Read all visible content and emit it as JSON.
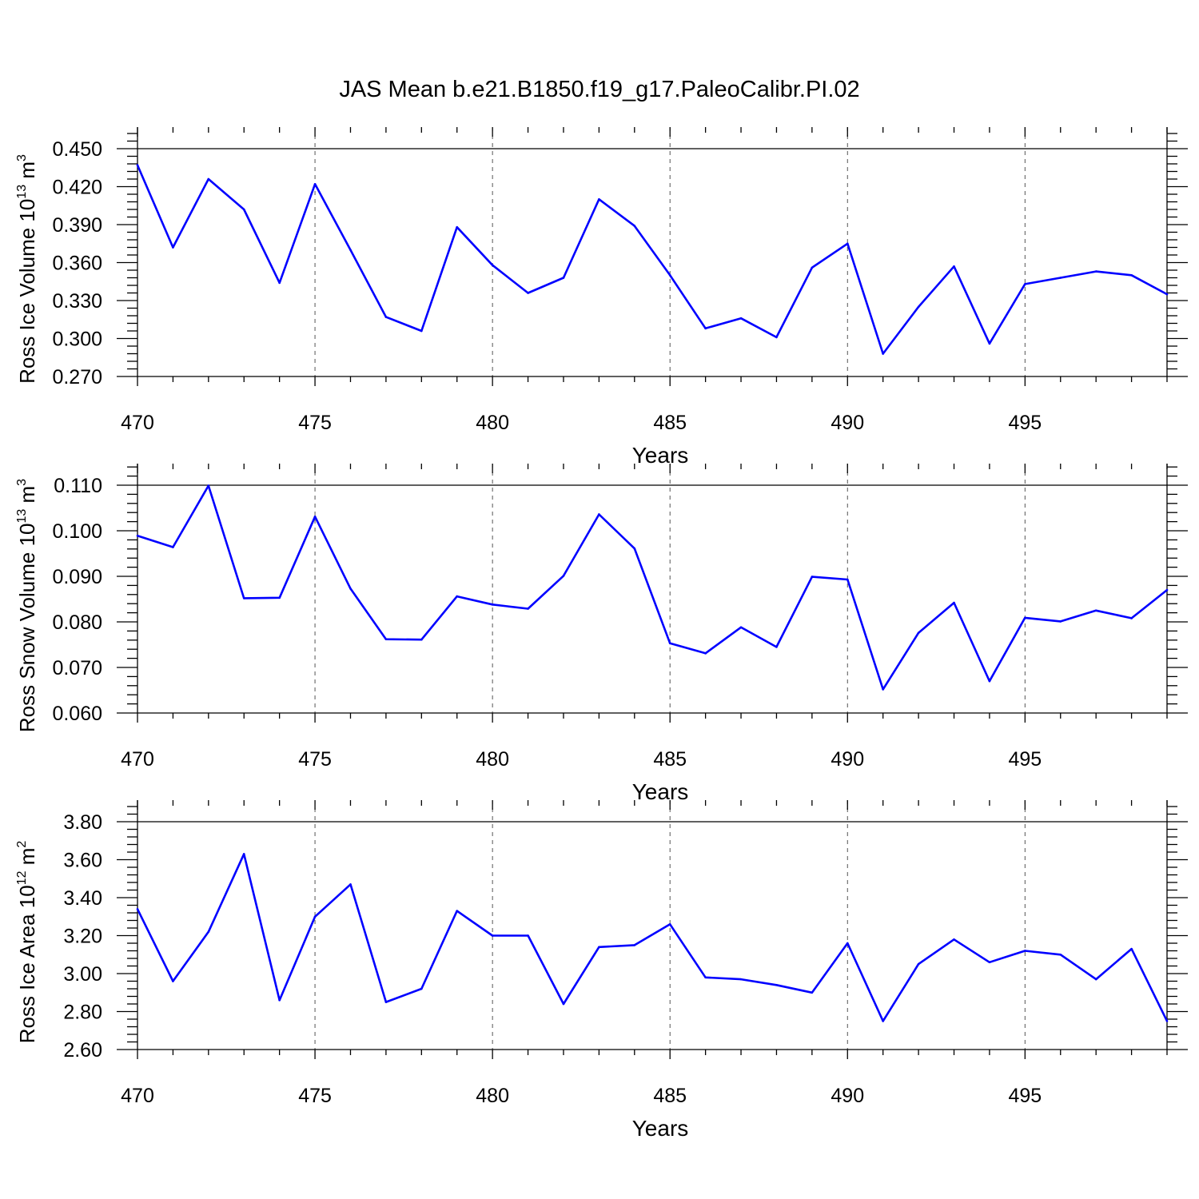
{
  "title": "JAS Mean b.e21.B1850.f19_g17.PaleoCalibr.PI.02",
  "colors": {
    "line": "#0000ff",
    "axis": "#000000",
    "grid": "#555555"
  },
  "chart_data": [
    {
      "type": "line",
      "id": "ice-volume",
      "xlabel": "Years",
      "ylabel": {
        "text": "Ross Ice Volume 10",
        "exp": "13",
        "unit": " m",
        "unit_exp": "3"
      },
      "xlim": [
        470,
        499
      ],
      "ylim": [
        0.27,
        0.45
      ],
      "yticks": [
        0.27,
        0.3,
        0.33,
        0.36,
        0.39,
        0.42,
        0.45
      ],
      "ytick_labels": [
        "0.270",
        "0.300",
        "0.330",
        "0.360",
        "0.390",
        "0.420",
        "0.450"
      ],
      "xticks": [
        470,
        475,
        480,
        485,
        490,
        495
      ],
      "xtick_labels": [
        "470",
        "475",
        "480",
        "485",
        "490",
        "495"
      ],
      "grid": "vertical dashed at major x ticks",
      "x": [
        470,
        471,
        472,
        473,
        474,
        475,
        476,
        477,
        478,
        479,
        480,
        481,
        482,
        483,
        484,
        485,
        486,
        487,
        488,
        489,
        490,
        491,
        492,
        493,
        494,
        495,
        496,
        497,
        498,
        499
      ],
      "values": [
        0.437,
        0.372,
        0.426,
        0.402,
        0.344,
        0.422,
        0.37,
        0.317,
        0.306,
        0.388,
        0.358,
        0.336,
        0.348,
        0.41,
        0.389,
        0.35,
        0.308,
        0.316,
        0.301,
        0.356,
        0.375,
        0.288,
        0.325,
        0.357,
        0.296,
        0.343,
        0.348,
        0.353,
        0.35,
        0.335
      ]
    },
    {
      "type": "line",
      "id": "snow-volume",
      "xlabel": "Years",
      "ylabel": {
        "text": "Ross Snow Volume 10",
        "exp": "13",
        "unit": " m",
        "unit_exp": "3"
      },
      "xlim": [
        470,
        499
      ],
      "ylim": [
        0.06,
        0.11
      ],
      "yticks": [
        0.06,
        0.07,
        0.08,
        0.09,
        0.1,
        0.11
      ],
      "ytick_labels": [
        "0.060",
        "0.070",
        "0.080",
        "0.090",
        "0.100",
        "0.110"
      ],
      "xticks": [
        470,
        475,
        480,
        485,
        490,
        495
      ],
      "xtick_labels": [
        "470",
        "475",
        "480",
        "485",
        "490",
        "495"
      ],
      "grid": "vertical dashed at major x ticks",
      "x": [
        470,
        471,
        472,
        473,
        474,
        475,
        476,
        477,
        478,
        479,
        480,
        481,
        482,
        483,
        484,
        485,
        486,
        487,
        488,
        489,
        490,
        491,
        492,
        493,
        494,
        495,
        496,
        497,
        498,
        499
      ],
      "values": [
        0.0989,
        0.0964,
        0.1099,
        0.0852,
        0.0853,
        0.1031,
        0.0873,
        0.0762,
        0.0761,
        0.0856,
        0.0838,
        0.0829,
        0.0901,
        0.1036,
        0.0961,
        0.0753,
        0.0731,
        0.0788,
        0.0745,
        0.0899,
        0.0893,
        0.0652,
        0.0776,
        0.0842,
        0.067,
        0.0809,
        0.0801,
        0.0825,
        0.0808,
        0.087
      ]
    },
    {
      "type": "line",
      "id": "ice-area",
      "xlabel": "Years",
      "ylabel": {
        "text": "Ross Ice Area 10",
        "exp": "12",
        "unit": " m",
        "unit_exp": "2"
      },
      "xlim": [
        470,
        499
      ],
      "ylim": [
        2.6,
        3.8
      ],
      "yticks": [
        2.6,
        2.8,
        3.0,
        3.2,
        3.4,
        3.6,
        3.8
      ],
      "ytick_labels": [
        "2.60",
        "2.80",
        "3.00",
        "3.20",
        "3.40",
        "3.60",
        "3.80"
      ],
      "xticks": [
        470,
        475,
        480,
        485,
        490,
        495
      ],
      "xtick_labels": [
        "470",
        "475",
        "480",
        "485",
        "490",
        "495"
      ],
      "grid": "vertical dashed at major x ticks",
      "x": [
        470,
        471,
        472,
        473,
        474,
        475,
        476,
        477,
        478,
        479,
        480,
        481,
        482,
        483,
        484,
        485,
        486,
        487,
        488,
        489,
        490,
        491,
        492,
        493,
        494,
        495,
        496,
        497,
        498,
        499
      ],
      "values": [
        3.34,
        2.96,
        3.22,
        3.63,
        2.86,
        3.3,
        3.47,
        2.85,
        2.92,
        3.33,
        3.2,
        3.2,
        2.84,
        3.14,
        3.15,
        3.26,
        2.98,
        2.97,
        2.94,
        2.9,
        3.16,
        2.75,
        3.05,
        3.18,
        3.06,
        3.12,
        3.1,
        2.97,
        3.13,
        2.75
      ]
    }
  ]
}
